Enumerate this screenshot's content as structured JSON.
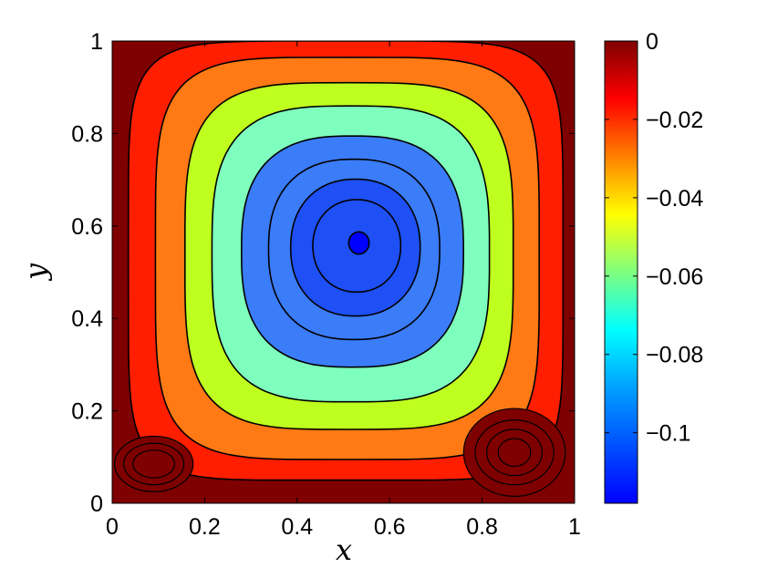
{
  "chart_data": {
    "type": "contour",
    "xlabel": "x",
    "ylabel": "y",
    "xlim": [
      0,
      1
    ],
    "ylim": [
      0,
      1
    ],
    "x_ticks": [
      "0",
      "0.2",
      "0.4",
      "0.6",
      "0.8",
      "1"
    ],
    "y_ticks": [
      "0",
      "0.2",
      "0.4",
      "0.6",
      "0.8",
      "1"
    ],
    "colormap": "jet",
    "colorbar": {
      "range": [
        -0.118,
        0
      ],
      "ticks": [
        "0",
        "−0.02",
        "−0.04",
        "−0.06",
        "−0.08",
        "−0.1"
      ],
      "tick_values": [
        0,
        -0.02,
        -0.04,
        -0.06,
        -0.08,
        -0.1
      ]
    },
    "primary_vortex_center": [
      0.53,
      0.565
    ],
    "primary_vortex_min": -0.117,
    "contour_levels": [
      {
        "level": -0.003,
        "color": "#ff1e00",
        "rx": 0.47,
        "ry": 0.475,
        "p": 6.0
      },
      {
        "level": -0.025,
        "color": "#ff7a14",
        "rx": 0.415,
        "ry": 0.435,
        "p": 4.6
      },
      {
        "level": -0.045,
        "color": "#bfff1f",
        "rx": 0.355,
        "ry": 0.375,
        "p": 3.8
      },
      {
        "level": -0.065,
        "color": "#7fffbe",
        "rx": 0.3,
        "ry": 0.32,
        "p": 3.2
      },
      {
        "level": -0.085,
        "color": "#3b7cf8",
        "rx": 0.24,
        "ry": 0.25,
        "p": 2.7
      },
      {
        "level": -0.095,
        "color": "#3b7cf8",
        "rx": 0.185,
        "ry": 0.195,
        "p": 2.4
      },
      {
        "level": -0.103,
        "color": "#1e50f5",
        "rx": 0.14,
        "ry": 0.148,
        "p": 2.2
      },
      {
        "level": -0.11,
        "color": "#1e50f5",
        "rx": 0.095,
        "ry": 0.1,
        "p": 2.1
      },
      {
        "level": -0.115,
        "color": "#0000ff",
        "rx": 0.022,
        "ry": 0.024,
        "p": 2.0
      }
    ],
    "secondary_vortices": [
      {
        "name": "bottom-left",
        "center": [
          0.09,
          0.085
        ],
        "color": "#7f0000"
      },
      {
        "name": "bottom-right",
        "center": [
          0.87,
          0.11
        ],
        "color": "#7f0000"
      }
    ]
  }
}
